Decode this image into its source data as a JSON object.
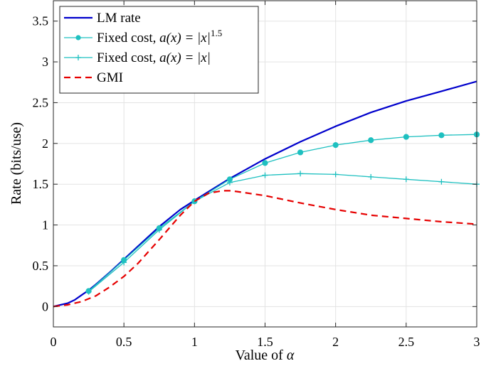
{
  "chart_data": {
    "type": "line",
    "xlabel": "Value of α",
    "ylabel": "Rate (bits/use)",
    "xlim": [
      0,
      3
    ],
    "ylim": [
      -0.25,
      3.75
    ],
    "grid": true,
    "legend_position": "top-left",
    "x_ticks": [
      0,
      0.5,
      1,
      1.5,
      2,
      2.5,
      3
    ],
    "x_tick_labels": [
      "0",
      "0.5",
      "1",
      "1.5",
      "2",
      "2.5",
      "3"
    ],
    "y_ticks": [
      0,
      0.5,
      1,
      1.5,
      2,
      2.5,
      3,
      3.5
    ],
    "y_tick_labels": [
      "0",
      "0.5",
      "1",
      "1.5",
      "2",
      "2.5",
      "3",
      "3.5"
    ],
    "series": [
      {
        "name": "LM rate",
        "color": "#0000cc",
        "style": "solid",
        "marker": "none",
        "x": [
          0,
          0.05,
          0.1,
          0.15,
          0.2,
          0.25,
          0.3,
          0.4,
          0.5,
          0.6,
          0.75,
          0.9,
          1,
          1.1,
          1.25,
          1.5,
          1.75,
          2,
          2.25,
          2.5,
          2.75,
          3
        ],
        "y": [
          0,
          0.02,
          0.04,
          0.08,
          0.14,
          0.2,
          0.27,
          0.42,
          0.58,
          0.74,
          0.98,
          1.19,
          1.3,
          1.41,
          1.57,
          1.81,
          2.02,
          2.21,
          2.38,
          2.52,
          2.64,
          2.76
        ]
      },
      {
        "name": "Fixed cost, a(x) = |x|^1.5",
        "color": "#1ec0c0",
        "style": "solid",
        "marker": "dot",
        "x": [
          0.25,
          0.5,
          0.75,
          1,
          1.25,
          1.5,
          1.75,
          2,
          2.25,
          2.5,
          2.75,
          3
        ],
        "y": [
          0.19,
          0.57,
          0.96,
          1.29,
          1.56,
          1.76,
          1.89,
          1.98,
          2.04,
          2.08,
          2.1,
          2.11
        ]
      },
      {
        "name": "Fixed cost, a(x) = |x|",
        "color": "#1ec0c0",
        "style": "solid",
        "marker": "plus",
        "x": [
          0.25,
          0.5,
          0.75,
          1,
          1.25,
          1.5,
          1.75,
          2,
          2.25,
          2.5,
          2.75,
          3
        ],
        "y": [
          0.18,
          0.54,
          0.94,
          1.29,
          1.52,
          1.61,
          1.63,
          1.62,
          1.59,
          1.56,
          1.53,
          1.5
        ]
      },
      {
        "name": "GMI",
        "color": "#e60000",
        "style": "dashed",
        "marker": "none",
        "x": [
          0,
          0.1,
          0.2,
          0.3,
          0.4,
          0.5,
          0.6,
          0.75,
          0.9,
          1,
          1.1,
          1.2,
          1.25,
          1.3,
          1.5,
          1.75,
          2,
          2.25,
          2.5,
          2.75,
          3
        ],
        "y": [
          0,
          0.02,
          0.06,
          0.13,
          0.24,
          0.37,
          0.53,
          0.82,
          1.12,
          1.29,
          1.39,
          1.42,
          1.42,
          1.41,
          1.36,
          1.27,
          1.19,
          1.12,
          1.08,
          1.04,
          1.01
        ]
      }
    ],
    "legend": {
      "entries": [
        {
          "prefix": "LM rate",
          "math": "",
          "sup": ""
        },
        {
          "prefix": "Fixed cost, ",
          "math": "a(x) = |x|",
          "sup": "1.5"
        },
        {
          "prefix": "Fixed cost, ",
          "math": "a(x) = |x|",
          "sup": ""
        },
        {
          "prefix": "GMI",
          "math": "",
          "sup": ""
        }
      ]
    }
  }
}
